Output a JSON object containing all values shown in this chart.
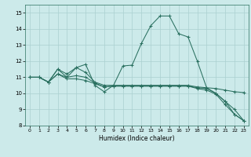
{
  "xlabel": "Humidex (Indice chaleur)",
  "bg_color": "#cceaea",
  "grid_color": "#aad0d0",
  "line_color": "#2a7060",
  "xlim": [
    -0.5,
    23.5
  ],
  "ylim": [
    8,
    15.5
  ],
  "yticks": [
    8,
    9,
    10,
    11,
    12,
    13,
    14,
    15
  ],
  "xticks": [
    0,
    1,
    2,
    3,
    4,
    5,
    6,
    7,
    8,
    9,
    10,
    11,
    12,
    13,
    14,
    15,
    16,
    17,
    18,
    19,
    20,
    21,
    22,
    23
  ],
  "series": [
    [
      11,
      11,
      10.7,
      11.5,
      11.0,
      11.6,
      11.8,
      10.5,
      10.1,
      10.5,
      11.7,
      11.75,
      13.1,
      14.2,
      14.8,
      14.8,
      13.7,
      13.5,
      12.0,
      10.35,
      10.0,
      9.5,
      8.7,
      8.3
    ],
    [
      11,
      11,
      10.7,
      11.5,
      11.2,
      11.6,
      11.3,
      10.7,
      10.5,
      10.5,
      10.5,
      10.5,
      10.5,
      10.5,
      10.5,
      10.5,
      10.5,
      10.5,
      10.4,
      10.35,
      10.3,
      10.2,
      10.1,
      10.05
    ],
    [
      11,
      11,
      10.7,
      11.2,
      11.0,
      11.1,
      11.0,
      10.65,
      10.4,
      10.45,
      10.45,
      10.45,
      10.45,
      10.45,
      10.45,
      10.45,
      10.45,
      10.45,
      10.35,
      10.3,
      10.0,
      9.5,
      9.0,
      8.3
    ],
    [
      11,
      11,
      10.7,
      11.2,
      10.9,
      10.9,
      10.8,
      10.6,
      10.4,
      10.45,
      10.45,
      10.45,
      10.45,
      10.45,
      10.45,
      10.45,
      10.45,
      10.45,
      10.3,
      10.2,
      9.95,
      9.3,
      8.7,
      8.3
    ]
  ]
}
